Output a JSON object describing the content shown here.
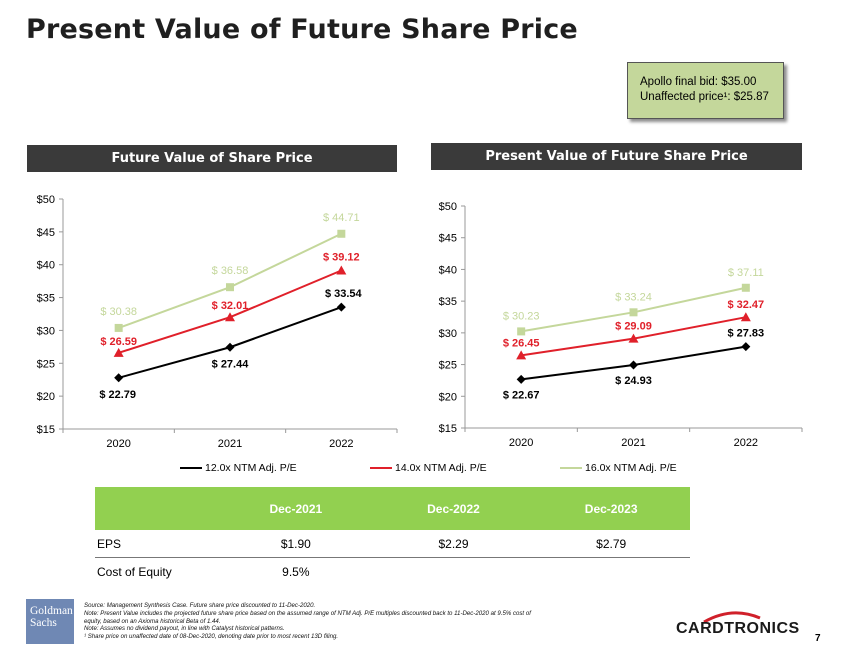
{
  "title": "Present Value of Future Share Price",
  "callout": {
    "line1": "Apollo final bid: $35.00",
    "line2": "Unaffected price¹: $25.87"
  },
  "colors": {
    "series_12x": "#000000",
    "series_14x": "#e0202a",
    "series_16x": "#c4d79b",
    "header_bg": "#3a3a3a",
    "table_header": "#92d050",
    "callout_bg": "#c4d79b"
  },
  "chart_data": [
    {
      "type": "line",
      "title": "Future Value of Share Price",
      "categories": [
        "2020",
        "2021",
        "2022"
      ],
      "y_ticks": [
        "$15",
        "$20",
        "$25",
        "$30",
        "$35",
        "$40",
        "$45",
        "$50"
      ],
      "ylim": [
        15,
        50
      ],
      "series": [
        {
          "name": "12.0x NTM Adj. P/E",
          "values": [
            22.79,
            27.44,
            33.54
          ],
          "labels": [
            "$ 22.79",
            "$ 27.44",
            "$ 33.54"
          ]
        },
        {
          "name": "14.0x NTM Adj. P/E",
          "values": [
            26.59,
            32.01,
            39.12
          ],
          "labels": [
            "$ 26.59",
            "$ 32.01",
            "$ 39.12"
          ]
        },
        {
          "name": "16.0x NTM Adj. P/E",
          "values": [
            30.38,
            36.58,
            44.71
          ],
          "labels": [
            "$ 30.38",
            "$ 36.58",
            "$ 44.71"
          ]
        }
      ]
    },
    {
      "type": "line",
      "title": "Present Value of Future Share Price",
      "categories": [
        "2020",
        "2021",
        "2022"
      ],
      "y_ticks": [
        "$15",
        "$20",
        "$25",
        "$30",
        "$35",
        "$40",
        "$45",
        "$50"
      ],
      "ylim": [
        15,
        50
      ],
      "series": [
        {
          "name": "12.0x NTM Adj. P/E",
          "values": [
            22.67,
            24.93,
            27.83
          ],
          "labels": [
            "$ 22.67",
            "$ 24.93",
            "$ 27.83"
          ]
        },
        {
          "name": "14.0x NTM Adj. P/E",
          "values": [
            26.45,
            29.09,
            32.47
          ],
          "labels": [
            "$ 26.45",
            "$ 29.09",
            "$ 32.47"
          ]
        },
        {
          "name": "16.0x NTM Adj. P/E",
          "values": [
            30.23,
            33.24,
            37.11
          ],
          "labels": [
            "$ 30.23",
            "$ 33.24",
            "$ 37.11"
          ]
        }
      ]
    }
  ],
  "legend": [
    "12.0x NTM Adj. P/E",
    "14.0x NTM Adj. P/E",
    "16.0x NTM Adj. P/E"
  ],
  "table": {
    "headers": [
      "",
      "Dec-2021",
      "Dec-2022",
      "Dec-2023"
    ],
    "rows": [
      {
        "label": "EPS",
        "values": [
          "$1.90",
          "$2.29",
          "$2.79"
        ]
      },
      {
        "label": "Cost of Equity",
        "values": [
          "9.5%",
          "",
          ""
        ]
      }
    ]
  },
  "footnotes": [
    "Source:  Management Synthesis Case. Future share price discounted to 11-Dec-2020.",
    "Note: Present Value includes the projected future share price based on the assumed range of NTM Adj. P/E multiples discounted back to 11-Dec-2020 at 9.5% cost of",
    "equity, based on an Axioma historical Beta of 1.44.",
    "Note: Assumes no dividend payout, in line with Catalyst historical patterns.",
    "¹ Share price on unaffected date of 08-Dec-2020, denoting date prior to most recent 13D filing."
  ],
  "logos": {
    "goldman_line1": "Goldman",
    "goldman_line2": "Sachs",
    "cardtronics": "CARDTRONICS"
  },
  "page_number": "7"
}
